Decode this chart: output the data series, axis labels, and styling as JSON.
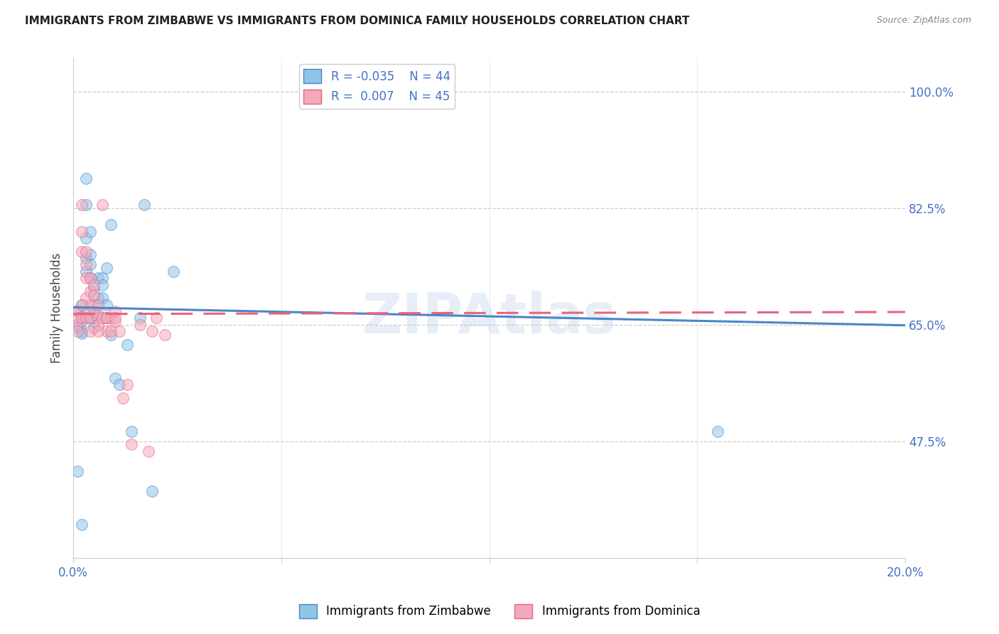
{
  "title": "IMMIGRANTS FROM ZIMBABWE VS IMMIGRANTS FROM DOMINICA FAMILY HOUSEHOLDS CORRELATION CHART",
  "source": "Source: ZipAtlas.com",
  "ylabel": "Family Households",
  "ytick_labels": [
    "47.5%",
    "65.0%",
    "82.5%",
    "100.0%"
  ],
  "ytick_values": [
    0.475,
    0.65,
    0.825,
    1.0
  ],
  "xlim": [
    0.0,
    0.2
  ],
  "ylim": [
    0.3,
    1.05
  ],
  "legend_r1": "R = -0.035",
  "legend_n1": "N = 44",
  "legend_r2": "R =  0.007",
  "legend_n2": "N = 45",
  "color_blue": "#90c4e8",
  "color_pink": "#f4a8bc",
  "color_blue_line": "#4a86c8",
  "color_pink_line": "#e8637a",
  "watermark": "ZIPAtlas",
  "blue_line_x": [
    0.0,
    0.2
  ],
  "blue_line_y": [
    0.676,
    0.649
  ],
  "pink_line_x": [
    0.0,
    0.2
  ],
  "pink_line_y": [
    0.666,
    0.669
  ],
  "blue_points_x": [
    0.001,
    0.001,
    0.002,
    0.002,
    0.002,
    0.002,
    0.002,
    0.003,
    0.003,
    0.003,
    0.003,
    0.003,
    0.003,
    0.004,
    0.004,
    0.004,
    0.004,
    0.004,
    0.005,
    0.005,
    0.005,
    0.005,
    0.006,
    0.006,
    0.006,
    0.007,
    0.007,
    0.007,
    0.008,
    0.008,
    0.009,
    0.009,
    0.01,
    0.011,
    0.013,
    0.014,
    0.016,
    0.017,
    0.001,
    0.008,
    0.002,
    0.155,
    0.019,
    0.024
  ],
  "blue_points_y": [
    0.671,
    0.645,
    0.655,
    0.68,
    0.662,
    0.64,
    0.637,
    0.87,
    0.83,
    0.78,
    0.75,
    0.73,
    0.67,
    0.79,
    0.755,
    0.74,
    0.72,
    0.66,
    0.705,
    0.68,
    0.66,
    0.645,
    0.72,
    0.69,
    0.665,
    0.72,
    0.71,
    0.69,
    0.68,
    0.66,
    0.8,
    0.635,
    0.57,
    0.56,
    0.62,
    0.49,
    0.66,
    0.83,
    0.43,
    0.735,
    0.35,
    0.49,
    0.4,
    0.73
  ],
  "pink_points_x": [
    0.001,
    0.001,
    0.001,
    0.001,
    0.002,
    0.002,
    0.002,
    0.002,
    0.003,
    0.003,
    0.003,
    0.003,
    0.003,
    0.004,
    0.004,
    0.004,
    0.004,
    0.004,
    0.005,
    0.005,
    0.005,
    0.006,
    0.006,
    0.006,
    0.007,
    0.007,
    0.008,
    0.008,
    0.009,
    0.009,
    0.01,
    0.01,
    0.011,
    0.012,
    0.013,
    0.014,
    0.016,
    0.018,
    0.002,
    0.006,
    0.008,
    0.01,
    0.019,
    0.02,
    0.022
  ],
  "pink_points_y": [
    0.67,
    0.66,
    0.65,
    0.64,
    0.83,
    0.79,
    0.76,
    0.66,
    0.76,
    0.74,
    0.72,
    0.69,
    0.66,
    0.72,
    0.7,
    0.68,
    0.66,
    0.64,
    0.71,
    0.695,
    0.67,
    0.68,
    0.66,
    0.65,
    0.83,
    0.66,
    0.66,
    0.64,
    0.66,
    0.64,
    0.67,
    0.655,
    0.64,
    0.54,
    0.56,
    0.47,
    0.65,
    0.46,
    0.68,
    0.64,
    0.66,
    0.66,
    0.64,
    0.66,
    0.635
  ]
}
